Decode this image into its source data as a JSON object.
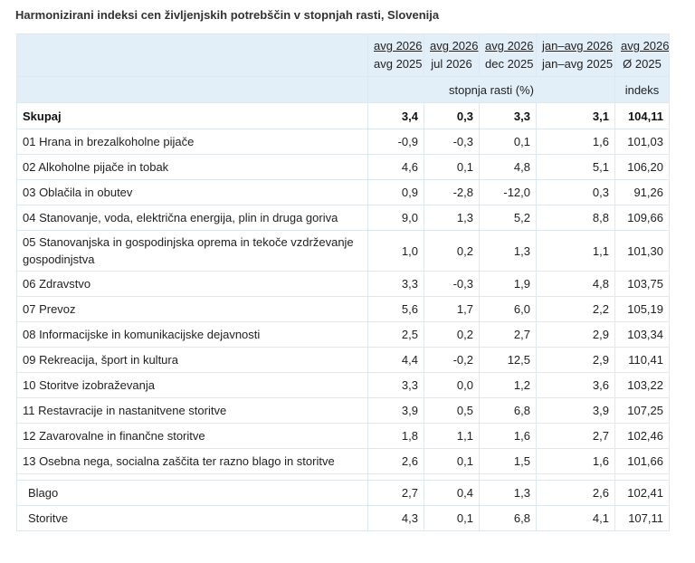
{
  "title": "Harmonizirani indeksi cen življenjskih potrebščin v stopnjah rasti, Slovenija",
  "columns": [
    {
      "top": "avg 2026",
      "bottom": "avg 2025"
    },
    {
      "top": "avg 2026",
      "bottom": "jul 2026"
    },
    {
      "top": "avg 2026",
      "bottom": "dec 2025"
    },
    {
      "top": "jan–avg 2026",
      "bottom": "jan–avg 2025"
    },
    {
      "top": "avg 2026",
      "bottom": "Ø 2025"
    }
  ],
  "units": {
    "rate": "stopnja rasti (%)",
    "index": "indeks"
  },
  "total": {
    "label": "Skupaj",
    "values": [
      "3,4",
      "0,3",
      "3,3",
      "3,1",
      "104,11"
    ]
  },
  "rows": [
    {
      "label": "01 Hrana in brezalkoholne pijače",
      "values": [
        "-0,9",
        "-0,3",
        "0,1",
        "1,6",
        "101,03"
      ]
    },
    {
      "label": "02 Alkoholne pijače in tobak",
      "values": [
        "4,6",
        "0,1",
        "4,8",
        "5,1",
        "106,20"
      ]
    },
    {
      "label": "03 Oblačila in obutev",
      "values": [
        "0,9",
        "-2,8",
        "-12,0",
        "0,3",
        "91,26"
      ]
    },
    {
      "label": "04 Stanovanje, voda, električna energija, plin in druga goriva",
      "values": [
        "9,0",
        "1,3",
        "5,2",
        "8,8",
        "109,66"
      ]
    },
    {
      "label": "05 Stanovanjska in gospodinjska oprema in tekoče vzdrževanje gospodinjstva",
      "values": [
        "1,0",
        "0,2",
        "1,3",
        "1,1",
        "101,30"
      ]
    },
    {
      "label": "06 Zdravstvo",
      "values": [
        "3,3",
        "-0,3",
        "1,9",
        "4,8",
        "103,75"
      ]
    },
    {
      "label": "07 Prevoz",
      "values": [
        "5,6",
        "1,7",
        "6,0",
        "2,2",
        "105,19"
      ]
    },
    {
      "label": "08 Informacijske in komunikacijske dejavnosti",
      "values": [
        "2,5",
        "0,2",
        "2,7",
        "2,9",
        "103,34"
      ]
    },
    {
      "label": "09 Rekreacija, šport in kultura",
      "values": [
        "4,4",
        "-0,2",
        "12,5",
        "2,9",
        "110,41"
      ]
    },
    {
      "label": "10 Storitve izobraževanja",
      "values": [
        "3,3",
        "0,0",
        "1,2",
        "3,6",
        "103,22"
      ]
    },
    {
      "label": "11 Restavracije in nastanitvene storitve",
      "values": [
        "3,9",
        "0,5",
        "6,8",
        "3,9",
        "107,25"
      ]
    },
    {
      "label": "12 Zavarovalne in finančne storitve",
      "values": [
        "1,8",
        "1,1",
        "1,6",
        "2,7",
        "102,46"
      ]
    },
    {
      "label": "13 Osebna nega, socialna zaščita ter razno blago in storitve",
      "values": [
        "2,6",
        "0,1",
        "1,5",
        "1,6",
        "101,66"
      ]
    }
  ],
  "subtotals": [
    {
      "label": "Blago",
      "values": [
        "2,7",
        "0,4",
        "1,3",
        "2,6",
        "102,41"
      ]
    },
    {
      "label": "Storitve",
      "values": [
        "4,3",
        "0,1",
        "6,8",
        "4,1",
        "107,11"
      ]
    }
  ],
  "colors": {
    "header_bg": "#e2eef8",
    "border": "#dde8f0"
  }
}
